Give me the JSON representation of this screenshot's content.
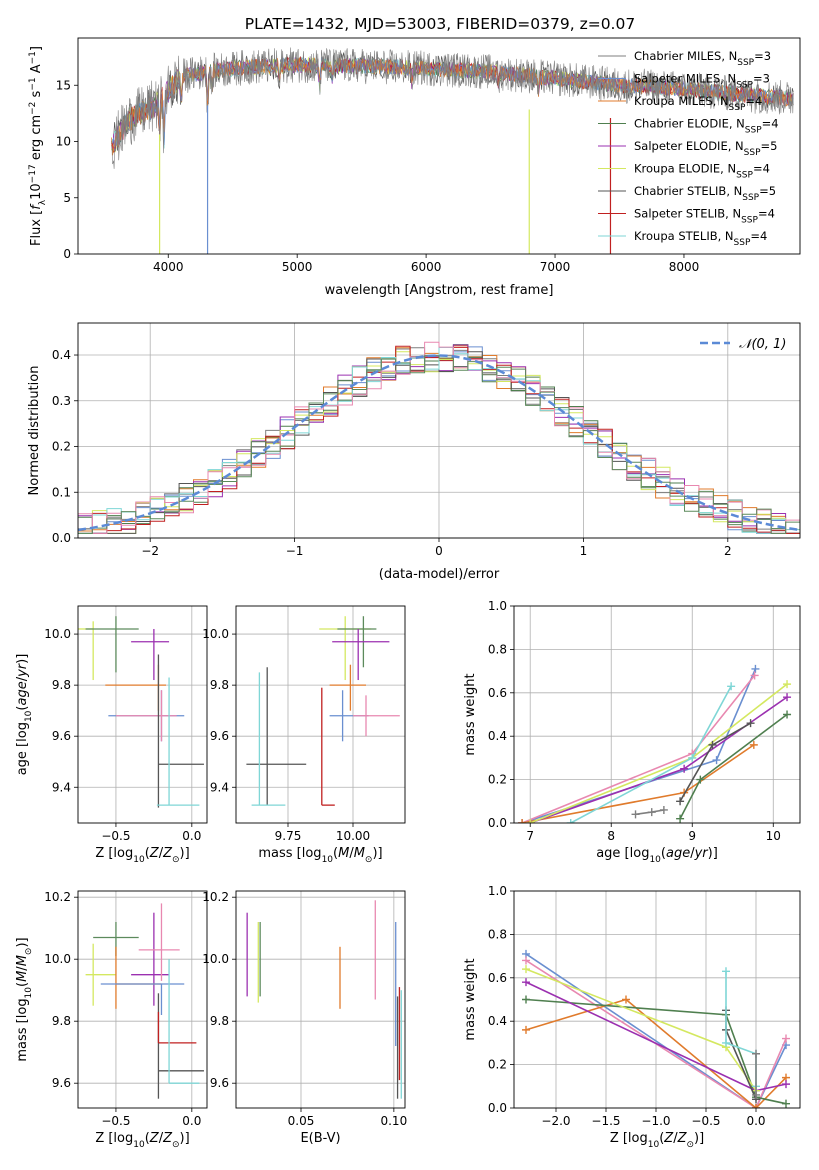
{
  "figure_title": "PLATE=1432, MJD=53003, FIBERID=0379, z=0.07",
  "palette": {
    "chabrier_miles": "#7f7f7f",
    "salpeter_miles": "#6a8fd0",
    "kroupa_miles": "#e07b2c",
    "chabrier_elodie": "#4f7f4f",
    "salpeter_elodie": "#9b30b0",
    "kroupa_elodie": "#d4e860",
    "chabrier_stelib": "#555555",
    "salpeter_stelib": "#c02020",
    "kroupa_stelib": "#7fd6d6",
    "pink": "#e888b0",
    "green2": "#5c8a5c",
    "gauss": "#5b8ad6"
  },
  "chart_data": [
    {
      "id": "spectrum",
      "type": "line",
      "title": "PLATE=1432, MJD=53003, FIBERID=0379, z=0.07",
      "xlabel": "wavelength [Angstrom, rest frame]",
      "ylabel": "Flux [f_λ 10^-17 erg cm^-2 s^-1 A^-1]",
      "xlim": [
        3300,
        8900
      ],
      "ylim": [
        0,
        19.2
      ],
      "xticks": [
        4000,
        5000,
        6000,
        7000,
        8000
      ],
      "yticks": [
        0,
        5,
        10,
        15
      ],
      "legend_position": "right",
      "series": [
        {
          "name": "Chabrier MILES, N_SSP=3",
          "color": "#7f7f7f"
        },
        {
          "name": "Salpeter MILES, N_SSP=3",
          "color": "#6a8fd0"
        },
        {
          "name": "Kroupa MILES, N_SSP=4",
          "color": "#e07b2c"
        },
        {
          "name": "Chabrier ELODIE, N_SSP=4",
          "color": "#4f7f4f"
        },
        {
          "name": "Salpeter ELODIE, N_SSP=5",
          "color": "#9b30b0"
        },
        {
          "name": "Kroupa ELODIE, N_SSP=4",
          "color": "#d4e860"
        },
        {
          "name": "Chabrier STELIB, N_SSP=5",
          "color": "#555555"
        },
        {
          "name": "Salpeter STELIB, N_SSP=4",
          "color": "#c02020"
        },
        {
          "name": "Kroupa STELIB, N_SSP=4",
          "color": "#7fd6d6"
        }
      ],
      "continuum": [
        [
          3560,
          9.5
        ],
        [
          3700,
          12.0
        ],
        [
          3900,
          13.2
        ],
        [
          4100,
          15.8
        ],
        [
          4300,
          16.2
        ],
        [
          4600,
          16.6
        ],
        [
          5000,
          16.8
        ],
        [
          5500,
          16.7
        ],
        [
          6000,
          16.5
        ],
        [
          6500,
          16.2
        ],
        [
          7000,
          15.6
        ],
        [
          7500,
          15.0
        ],
        [
          8000,
          14.7
        ],
        [
          8400,
          14.2
        ],
        [
          8850,
          13.8
        ]
      ],
      "drops": [
        [
          3933,
          0.0
        ],
        [
          4305,
          0.0
        ],
        [
          6800,
          0.0
        ],
        [
          7430,
          0.0
        ]
      ]
    },
    {
      "id": "residuals",
      "type": "line",
      "xlabel": "(data-model)/error",
      "ylabel": "Normed distribution",
      "xlim": [
        -2.5,
        2.5
      ],
      "ylim": [
        0,
        0.47
      ],
      "xticks": [
        -2,
        -1,
        0,
        1,
        2
      ],
      "yticks": [
        0.0,
        0.1,
        0.2,
        0.3,
        0.4
      ],
      "grid": true,
      "legend_position": "top-right",
      "gauss_label": "𝒩(0, 1)",
      "bin_width": 0.1
    },
    {
      "id": "age_vs_Z",
      "type": "scatter",
      "xlabel": "Z [log10(Z/Z⊙)]",
      "ylabel": "age  [log10(age/yr)]",
      "xlim": [
        -0.75,
        0.1
      ],
      "ylim": [
        9.26,
        10.11
      ],
      "xticks": [
        -0.5,
        0.0
      ],
      "yticks": [
        9.4,
        9.6,
        9.8,
        10.0
      ],
      "grid": true,
      "points": [
        {
          "x": -0.65,
          "y": 10.02,
          "xerr": [
            0.1,
            0.0
          ],
          "yerr": [
            0.2,
            0.03
          ],
          "color": "#d4e860"
        },
        {
          "x": -0.5,
          "y": 10.02,
          "xerr": [
            0.2,
            0.15
          ],
          "yerr": [
            0.17,
            0.05
          ],
          "color": "#5c8a5c"
        },
        {
          "x": -0.25,
          "y": 9.97,
          "xerr": [
            0.15,
            0.1
          ],
          "yerr": [
            0.15,
            0.05
          ],
          "color": "#9b30b0"
        },
        {
          "x": -0.22,
          "y": 9.8,
          "xerr": [
            0.35,
            0.05
          ],
          "yerr": [
            0.1,
            0.08
          ],
          "color": "#e07b2c"
        },
        {
          "x": -0.2,
          "y": 9.68,
          "xerr": [
            0.35,
            0.15
          ],
          "yerr": [
            0.1,
            0.1
          ],
          "color": "#6a8fd0"
        },
        {
          "x": -0.2,
          "y": 9.68,
          "xerr": [
            0.3,
            0.1
          ],
          "yerr": [
            0.1,
            0.1
          ],
          "color": "#e888b0"
        },
        {
          "x": -0.22,
          "y": 9.49,
          "xerr": [
            0.0,
            0.3
          ],
          "yerr": [
            0.17,
            0.43
          ],
          "color": "#555555"
        },
        {
          "x": -0.15,
          "y": 9.33,
          "xerr": [
            0.08,
            0.2
          ],
          "yerr": [
            0.0,
            0.5
          ],
          "color": "#7fd6d6"
        }
      ]
    },
    {
      "id": "age_vs_mass",
      "type": "scatter",
      "xlabel": "mass [log10(M/M⊙)]",
      "ylabel": "",
      "xlim": [
        9.55,
        10.2
      ],
      "ylim": [
        9.26,
        10.11
      ],
      "xticks": [
        9.75,
        10.0
      ],
      "yticks": [
        9.4,
        9.6,
        9.8,
        10.0
      ],
      "grid": true,
      "points": [
        {
          "x": 9.97,
          "y": 10.02,
          "xerr": [
            0.1,
            0.1
          ],
          "yerr": [
            0.2,
            0.05
          ],
          "color": "#d4e860"
        },
        {
          "x": 10.04,
          "y": 10.02,
          "xerr": [
            0.1,
            0.05
          ],
          "yerr": [
            0.15,
            0.05
          ],
          "color": "#5c8a5c"
        },
        {
          "x": 10.02,
          "y": 9.97,
          "xerr": [
            0.1,
            0.12
          ],
          "yerr": [
            0.15,
            0.05
          ],
          "color": "#9b30b0"
        },
        {
          "x": 9.99,
          "y": 9.8,
          "xerr": [
            0.08,
            0.06
          ],
          "yerr": [
            0.1,
            0.08
          ],
          "color": "#e07b2c"
        },
        {
          "x": 9.96,
          "y": 9.68,
          "xerr": [
            0.05,
            0.1
          ],
          "yerr": [
            0.1,
            0.1
          ],
          "color": "#6a8fd0"
        },
        {
          "x": 10.05,
          "y": 9.68,
          "xerr": [
            0.05,
            0.13
          ],
          "yerr": [
            0.08,
            0.08
          ],
          "color": "#e888b0"
        },
        {
          "x": 9.67,
          "y": 9.49,
          "xerr": [
            0.08,
            0.15
          ],
          "yerr": [
            0.16,
            0.38
          ],
          "color": "#555555"
        },
        {
          "x": 9.64,
          "y": 9.33,
          "xerr": [
            0.03,
            0.1
          ],
          "yerr": [
            0.0,
            0.52
          ],
          "color": "#7fd6d6"
        },
        {
          "x": 9.88,
          "y": 9.33,
          "xerr": [
            0.0,
            0.05
          ],
          "yerr": [
            0.0,
            0.46
          ],
          "color": "#c02020"
        }
      ]
    },
    {
      "id": "mass_weight_vs_age",
      "type": "line",
      "xlabel": "age  [log10(age/yr)]",
      "ylabel": "mass weight",
      "xlim": [
        6.8,
        10.33
      ],
      "ylim": [
        0,
        1.0
      ],
      "xticks": [
        7,
        8,
        9,
        10
      ],
      "yticks": [
        0.0,
        0.2,
        0.4,
        0.6,
        0.8,
        1.0
      ],
      "grid": true,
      "series": [
        {
          "color": "#7f7f7f",
          "x": [
            8.3,
            8.5,
            8.65
          ],
          "y": [
            0.04,
            0.05,
            0.06
          ]
        },
        {
          "color": "#6a8fd0",
          "x": [
            6.9,
            9.3,
            9.78
          ],
          "y": [
            0.0,
            0.29,
            0.71
          ]
        },
        {
          "color": "#e888b0",
          "x": [
            6.9,
            9.0,
            9.77
          ],
          "y": [
            0.0,
            0.32,
            0.68
          ]
        },
        {
          "color": "#e07b2c",
          "x": [
            6.9,
            8.9,
            9.76
          ],
          "y": [
            0.0,
            0.14,
            0.36
          ]
        },
        {
          "color": "#4f7f4f",
          "x": [
            8.85,
            9.1,
            10.17
          ],
          "y": [
            0.02,
            0.2,
            0.5
          ]
        },
        {
          "color": "#9b30b0",
          "x": [
            7.0,
            8.9,
            10.17
          ],
          "y": [
            0.0,
            0.25,
            0.58
          ]
        },
        {
          "color": "#d4e860",
          "x": [
            7.0,
            9.0,
            10.17
          ],
          "y": [
            0.0,
            0.3,
            0.64
          ]
        },
        {
          "color": "#555555",
          "x": [
            8.85,
            9.25,
            9.72
          ],
          "y": [
            0.1,
            0.36,
            0.46
          ]
        },
        {
          "color": "#7fd6d6",
          "x": [
            7.5,
            9.0,
            9.48
          ],
          "y": [
            0.0,
            0.3,
            0.63
          ]
        }
      ]
    },
    {
      "id": "mass_vs_Z",
      "type": "scatter",
      "xlabel": "Z [log10(Z/Z⊙)]",
      "ylabel": "mass [log10(M/M⊙)]",
      "xlim": [
        -0.75,
        0.1
      ],
      "ylim": [
        9.52,
        10.22
      ],
      "xticks": [
        -0.5,
        0.0
      ],
      "yticks": [
        9.6,
        9.8,
        10.0,
        10.2
      ],
      "grid": true,
      "points": [
        {
          "x": -0.65,
          "y": 9.95,
          "xerr": [
            0.05,
            0.15
          ],
          "yerr": [
            0.1,
            0.1
          ],
          "color": "#d4e860"
        },
        {
          "x": -0.5,
          "y": 10.07,
          "xerr": [
            0.15,
            0.15
          ],
          "yerr": [
            0.06,
            0.05
          ],
          "color": "#5c8a5c"
        },
        {
          "x": -0.25,
          "y": 9.95,
          "xerr": [
            0.15,
            0.1
          ],
          "yerr": [
            0.1,
            0.2
          ],
          "color": "#9b30b0"
        },
        {
          "x": -0.5,
          "y": 9.92,
          "xerr": [
            0.0,
            0.3
          ],
          "yerr": [
            0.08,
            0.12
          ],
          "color": "#e07b2c"
        },
        {
          "x": -0.2,
          "y": 10.03,
          "xerr": [
            0.15,
            0.12
          ],
          "yerr": [
            0.1,
            0.15
          ],
          "color": "#e888b0"
        },
        {
          "x": -0.2,
          "y": 9.92,
          "xerr": [
            0.4,
            0.15
          ],
          "yerr": [
            0.1,
            0.0
          ],
          "color": "#6a8fd0"
        },
        {
          "x": -0.22,
          "y": 9.64,
          "xerr": [
            0.0,
            0.3
          ],
          "yerr": [
            0.09,
            0.25
          ],
          "color": "#555555"
        },
        {
          "x": -0.22,
          "y": 9.73,
          "xerr": [
            0.0,
            0.25
          ],
          "yerr": [
            0.0,
            0.1
          ],
          "color": "#c02020"
        },
        {
          "x": -0.15,
          "y": 9.6,
          "xerr": [
            0.0,
            0.2
          ],
          "yerr": [
            0.0,
            0.4
          ],
          "color": "#7fd6d6"
        }
      ]
    },
    {
      "id": "mass_vs_ebv",
      "type": "scatter",
      "xlabel": "E(B-V)",
      "ylabel": "",
      "xlim": [
        0.015,
        0.106
      ],
      "ylim": [
        9.52,
        10.22
      ],
      "xticks": [
        0.05,
        0.1
      ],
      "yticks": [
        9.6,
        9.8,
        10.0,
        10.2
      ],
      "grid": true,
      "points": [
        {
          "x": 0.021,
          "y": 10.02,
          "xerr": [
            0.0,
            0.0
          ],
          "yerr": [
            0.14,
            0.13
          ],
          "color": "#9b30b0"
        },
        {
          "x": 0.027,
          "y": 9.99,
          "xerr": [
            0.0,
            0.0
          ],
          "yerr": [
            0.13,
            0.13
          ],
          "color": "#d4e860"
        },
        {
          "x": 0.028,
          "y": 10.0,
          "xerr": [
            0.0,
            0.0
          ],
          "yerr": [
            0.12,
            0.12
          ],
          "color": "#5c8a5c"
        },
        {
          "x": 0.071,
          "y": 9.94,
          "xerr": [
            0.0,
            0.0
          ],
          "yerr": [
            0.1,
            0.1
          ],
          "color": "#e07b2c"
        },
        {
          "x": 0.09,
          "y": 10.02,
          "xerr": [
            0.0,
            0.0
          ],
          "yerr": [
            0.15,
            0.17
          ],
          "color": "#e888b0"
        },
        {
          "x": 0.101,
          "y": 9.92,
          "xerr": [
            0.0,
            0.0
          ],
          "yerr": [
            0.2,
            0.2
          ],
          "color": "#6a8fd0"
        },
        {
          "x": 0.103,
          "y": 9.83,
          "xerr": [
            0.0,
            0.0
          ],
          "yerr": [
            0.22,
            0.08
          ],
          "color": "#c02020"
        },
        {
          "x": 0.102,
          "y": 9.63,
          "xerr": [
            0.0,
            0.0
          ],
          "yerr": [
            0.08,
            0.25
          ],
          "color": "#555555"
        },
        {
          "x": 0.104,
          "y": 9.6,
          "xerr": [
            0.0,
            0.0
          ],
          "yerr": [
            0.05,
            0.3
          ],
          "color": "#7fd6d6"
        }
      ]
    },
    {
      "id": "mass_weight_vs_Z",
      "type": "line",
      "xlabel": "Z [log10(Z/Z⊙)]",
      "ylabel": "mass weight",
      "xlim": [
        -2.42,
        0.44
      ],
      "ylim": [
        0,
        1.0
      ],
      "xticks": [
        -2.0,
        -1.5,
        -1.0,
        -0.5,
        0.0
      ],
      "yticks": [
        0.0,
        0.2,
        0.4,
        0.6,
        0.8,
        1.0
      ],
      "grid": true,
      "series": [
        {
          "color": "#6a8fd0",
          "x": [
            -2.3,
            0.0,
            0.3
          ],
          "y": [
            0.71,
            0.0,
            0.29
          ]
        },
        {
          "color": "#e888b0",
          "x": [
            -2.3,
            0.0,
            0.3
          ],
          "y": [
            0.68,
            0.0,
            0.32
          ]
        },
        {
          "color": "#e07b2c",
          "x": [
            -2.3,
            -1.3,
            0.0,
            0.3
          ],
          "y": [
            0.36,
            0.5,
            0.0,
            0.14
          ]
        },
        {
          "color": "#4f7f4f",
          "x": [
            -2.3,
            -0.3,
            0.0,
            0.3
          ],
          "y": [
            0.5,
            0.43,
            0.05,
            0.02
          ]
        },
        {
          "color": "#9b30b0",
          "x": [
            -2.3,
            0.0,
            0.3
          ],
          "y": [
            0.58,
            0.08,
            0.11
          ]
        },
        {
          "color": "#d4e860",
          "x": [
            -2.3,
            -0.3,
            0.0
          ],
          "y": [
            0.64,
            0.28,
            0.08
          ]
        },
        {
          "color": "#555555",
          "x": [
            -0.3,
            -0.3,
            0.0
          ],
          "y": [
            0.45,
            0.36,
            0.04
          ]
        },
        {
          "color": "#7fd6d6",
          "x": [
            -0.3,
            -0.3,
            0.0,
            0.0
          ],
          "y": [
            0.63,
            0.3,
            0.25,
            0.1
          ]
        },
        {
          "color": "#7f7f7f",
          "x": [
            0.0,
            0.0
          ],
          "y": [
            0.25,
            0.06
          ]
        }
      ]
    }
  ]
}
